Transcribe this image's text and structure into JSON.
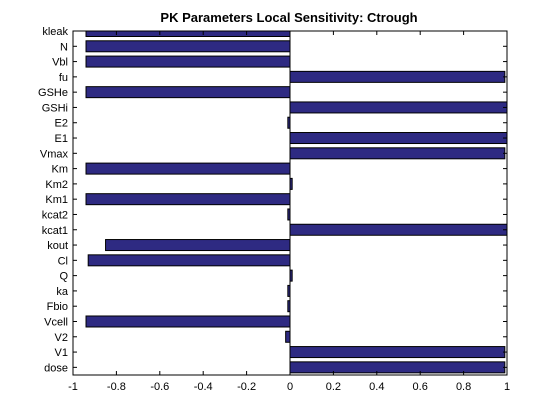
{
  "chart_data": {
    "type": "bar",
    "orientation": "horizontal",
    "title": "PK Parameters Local Sensitivity: Ctrough",
    "xlabel": "",
    "ylabel": "",
    "xlim": [
      -1,
      1
    ],
    "xticks": [
      -1,
      -0.8,
      -0.6,
      -0.4,
      -0.2,
      0,
      0.2,
      0.4,
      0.6,
      0.8,
      1
    ],
    "xtick_labels": [
      "-1",
      "-0.8",
      "-0.6",
      "-0.4",
      "-0.2",
      "0",
      "0.2",
      "0.4",
      "0.6",
      "0.8",
      "1"
    ],
    "grid": false,
    "legend": "none",
    "bar_color": "#2e2a82",
    "categories": [
      "kleak",
      "N",
      "Vbl",
      "fu",
      "GSHe",
      "GSHi",
      "E2",
      "E1",
      "Vmax",
      "Km",
      "Km2",
      "Km1",
      "kcat2",
      "kcat1",
      "kout",
      "Cl",
      "Q",
      "ka",
      "Fbio",
      "Vcell",
      "V2",
      "V1",
      "dose"
    ],
    "values": [
      -0.94,
      -0.94,
      -0.94,
      0.99,
      -0.94,
      1.0,
      -0.01,
      1.0,
      0.99,
      -0.94,
      0.01,
      -0.94,
      -0.01,
      1.0,
      -0.85,
      -0.93,
      0.01,
      -0.01,
      -0.01,
      -0.94,
      -0.02,
      0.99,
      0.99
    ]
  }
}
